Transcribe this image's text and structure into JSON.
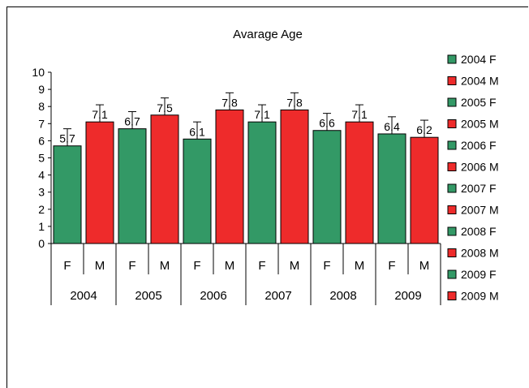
{
  "chart_data": {
    "type": "bar",
    "title": "Avarage Age",
    "xlabel": "",
    "ylabel": "",
    "ylim": [
      0,
      10
    ],
    "yticks": [
      "0",
      "1",
      "2",
      "3",
      "4",
      "5",
      "6",
      "7",
      "8",
      "9",
      "10"
    ],
    "grid": false,
    "legend_position": "right",
    "groups": [
      "2004",
      "2005",
      "2006",
      "2007",
      "2008",
      "2009"
    ],
    "subcategories": [
      "F",
      "M"
    ],
    "bars": [
      {
        "group": "2004",
        "sub": "F",
        "series": "2004 F",
        "value": 5.7,
        "label": "5.7",
        "error_plus": 1.0,
        "color": "#339966"
      },
      {
        "group": "2004",
        "sub": "M",
        "series": "2004 M",
        "value": 7.1,
        "label": "7.1",
        "error_plus": 1.0,
        "color": "#ee2b2b"
      },
      {
        "group": "2005",
        "sub": "F",
        "series": "2005 F",
        "value": 6.7,
        "label": "6.7",
        "error_plus": 1.0,
        "color": "#339966"
      },
      {
        "group": "2005",
        "sub": "M",
        "series": "2005 M",
        "value": 7.5,
        "label": "7.5",
        "error_plus": 1.0,
        "color": "#ee2b2b"
      },
      {
        "group": "2006",
        "sub": "F",
        "series": "2006 F",
        "value": 6.1,
        "label": "6.1",
        "error_plus": 1.0,
        "color": "#339966"
      },
      {
        "group": "2006",
        "sub": "M",
        "series": "2006 M",
        "value": 7.8,
        "label": "7.8",
        "error_plus": 1.0,
        "color": "#ee2b2b"
      },
      {
        "group": "2007",
        "sub": "F",
        "series": "2007 F",
        "value": 7.1,
        "label": "7.1",
        "error_plus": 1.0,
        "color": "#339966"
      },
      {
        "group": "2007",
        "sub": "M",
        "series": "2007 M",
        "value": 7.8,
        "label": "7.8",
        "error_plus": 1.0,
        "color": "#ee2b2b"
      },
      {
        "group": "2008",
        "sub": "F",
        "series": "2008 F",
        "value": 6.6,
        "label": "6.6",
        "error_plus": 1.0,
        "color": "#339966"
      },
      {
        "group": "2008",
        "sub": "M",
        "series": "2008 M",
        "value": 7.1,
        "label": "7.1",
        "error_plus": 1.0,
        "color": "#ee2b2b"
      },
      {
        "group": "2009",
        "sub": "F",
        "series": "2009 F",
        "value": 6.4,
        "label": "6.4",
        "error_plus": 1.0,
        "color": "#339966"
      },
      {
        "group": "2009",
        "sub": "M",
        "series": "2009 M",
        "value": 6.2,
        "label": "6.2",
        "error_plus": 1.0,
        "color": "#ee2b2b"
      }
    ],
    "legend": [
      {
        "label": "2004 F",
        "color": "#339966"
      },
      {
        "label": "2004 M",
        "color": "#ee2b2b"
      },
      {
        "label": "2005 F",
        "color": "#339966"
      },
      {
        "label": "2005 M",
        "color": "#ee2b2b"
      },
      {
        "label": "2006 F",
        "color": "#339966"
      },
      {
        "label": "2006 M",
        "color": "#ee2b2b"
      },
      {
        "label": "2007 F",
        "color": "#339966"
      },
      {
        "label": "2007 M",
        "color": "#ee2b2b"
      },
      {
        "label": "2008 F",
        "color": "#339966"
      },
      {
        "label": "2008 M",
        "color": "#ee2b2b"
      },
      {
        "label": "2009 F",
        "color": "#339966"
      },
      {
        "label": "2009 M",
        "color": "#ee2b2b"
      }
    ]
  }
}
